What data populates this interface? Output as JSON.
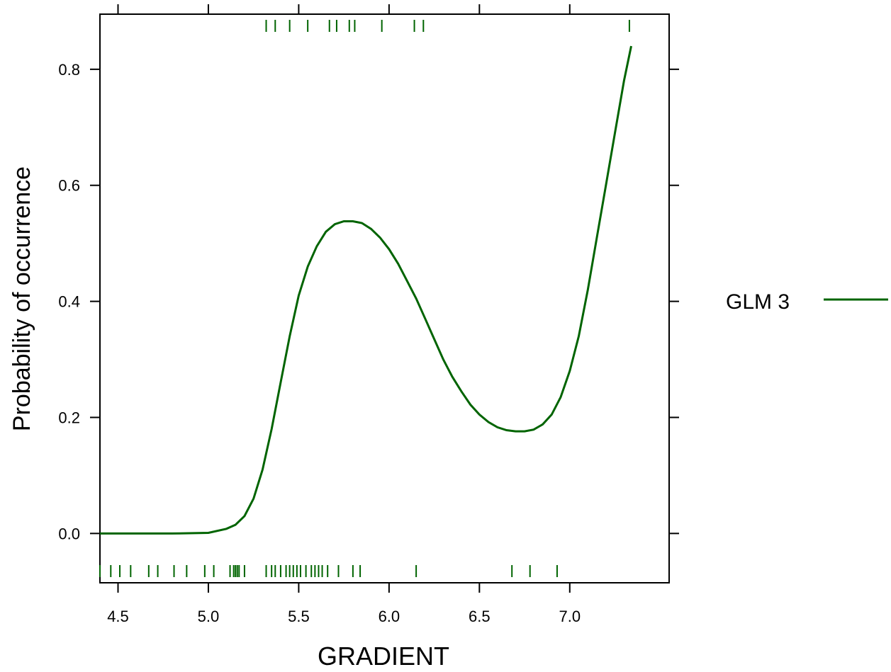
{
  "chart_data": {
    "type": "line",
    "title": "",
    "xlabel": "GRADIENT",
    "ylabel": "Probability of occurrence",
    "xlim": [
      4.4,
      7.55
    ],
    "ylim": [
      -0.085,
      0.895
    ],
    "xticks": [
      4.5,
      5.0,
      5.5,
      6.0,
      6.5,
      7.0
    ],
    "xtick_labels": [
      "4.5",
      "5.0",
      "5.5",
      "6.0",
      "6.5",
      "7.0"
    ],
    "yticks": [
      0.0,
      0.2,
      0.4,
      0.6,
      0.8
    ],
    "ytick_labels": [
      "0.0",
      "0.2",
      "0.4",
      "0.6",
      "0.8"
    ],
    "grid": false,
    "legend_position": "right",
    "series": [
      {
        "name": "GLM 3",
        "color": "#006400",
        "x": [
          4.4,
          4.6,
          4.8,
          5.0,
          5.1,
          5.15,
          5.2,
          5.25,
          5.3,
          5.35,
          5.4,
          5.45,
          5.5,
          5.55,
          5.6,
          5.65,
          5.7,
          5.75,
          5.8,
          5.85,
          5.9,
          5.95,
          6.0,
          6.05,
          6.1,
          6.15,
          6.2,
          6.25,
          6.3,
          6.35,
          6.4,
          6.45,
          6.5,
          6.55,
          6.6,
          6.65,
          6.7,
          6.75,
          6.8,
          6.85,
          6.9,
          6.95,
          7.0,
          7.05,
          7.1,
          7.15,
          7.2,
          7.25,
          7.3,
          7.34
        ],
        "y": [
          0.0,
          0.0,
          0.0,
          0.001,
          0.008,
          0.015,
          0.03,
          0.06,
          0.11,
          0.18,
          0.26,
          0.34,
          0.41,
          0.46,
          0.495,
          0.52,
          0.533,
          0.538,
          0.538,
          0.535,
          0.525,
          0.51,
          0.49,
          0.465,
          0.435,
          0.405,
          0.37,
          0.335,
          0.3,
          0.27,
          0.245,
          0.222,
          0.205,
          0.192,
          0.183,
          0.178,
          0.176,
          0.176,
          0.179,
          0.188,
          0.205,
          0.235,
          0.28,
          0.34,
          0.42,
          0.51,
          0.6,
          0.69,
          0.78,
          0.84
        ]
      }
    ],
    "rug_bottom_x": [
      4.4,
      4.46,
      4.51,
      4.57,
      4.67,
      4.72,
      4.81,
      4.88,
      4.98,
      5.03,
      5.12,
      5.14,
      5.15,
      5.16,
      5.17,
      5.2,
      5.32,
      5.35,
      5.37,
      5.4,
      5.43,
      5.45,
      5.47,
      5.49,
      5.51,
      5.54,
      5.57,
      5.59,
      5.61,
      5.63,
      5.66,
      5.72,
      5.8,
      5.84,
      6.15,
      6.68,
      6.78,
      6.93
    ],
    "rug_top_x": [
      5.32,
      5.37,
      5.45,
      5.55,
      5.67,
      5.71,
      5.78,
      5.81,
      5.96,
      6.14,
      6.19,
      7.33
    ]
  }
}
